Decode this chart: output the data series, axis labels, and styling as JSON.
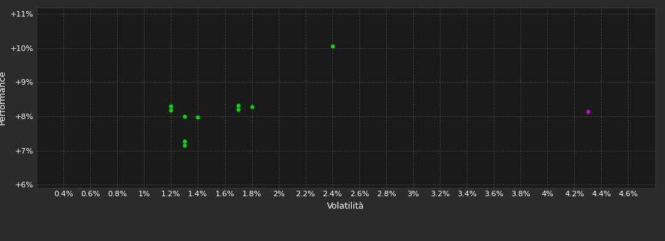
{
  "background_color": "#2b2b2b",
  "plot_bg_color": "#1a1a1a",
  "grid_color": "#404040",
  "text_color": "#ffffff",
  "xlabel": "Volatilità",
  "ylabel": "Performance",
  "xlim": [
    0.002,
    0.048
  ],
  "ylim": [
    0.059,
    0.112
  ],
  "yticks": [
    0.06,
    0.07,
    0.08,
    0.09,
    0.1,
    0.11
  ],
  "xticks": [
    0.004,
    0.006,
    0.008,
    0.01,
    0.012,
    0.014,
    0.016,
    0.018,
    0.02,
    0.022,
    0.024,
    0.026,
    0.028,
    0.03,
    0.032,
    0.034,
    0.036,
    0.038,
    0.04,
    0.042,
    0.044,
    0.046
  ],
  "xtick_labels": [
    "0.4%",
    "0.6%",
    "0.8%",
    "1%",
    "1.2%",
    "1.4%",
    "1.6%",
    "1.8%",
    "2%",
    "2.2%",
    "2.4%",
    "2.6%",
    "2.8%",
    "3%",
    "3.2%",
    "3.4%",
    "3.6%",
    "3.8%",
    "4%",
    "4.2%",
    "4.4%",
    "4.6%"
  ],
  "ytick_labels": [
    "+6%",
    "+7%",
    "+8%",
    "+9%",
    "+10%",
    "+11%"
  ],
  "green_points": [
    [
      0.012,
      0.083
    ],
    [
      0.012,
      0.0818
    ],
    [
      0.013,
      0.08
    ],
    [
      0.014,
      0.0798
    ],
    [
      0.013,
      0.0728
    ],
    [
      0.013,
      0.0716
    ],
    [
      0.017,
      0.0832
    ],
    [
      0.017,
      0.082
    ],
    [
      0.018,
      0.0828
    ],
    [
      0.024,
      0.1005
    ]
  ],
  "magenta_points": [
    [
      0.043,
      0.0815
    ]
  ],
  "green_color": "#00dd00",
  "magenta_color": "#dd00dd",
  "marker_size": 18,
  "font_size": 9,
  "axis_label_fontsize": 9,
  "tick_label_fontsize": 8
}
